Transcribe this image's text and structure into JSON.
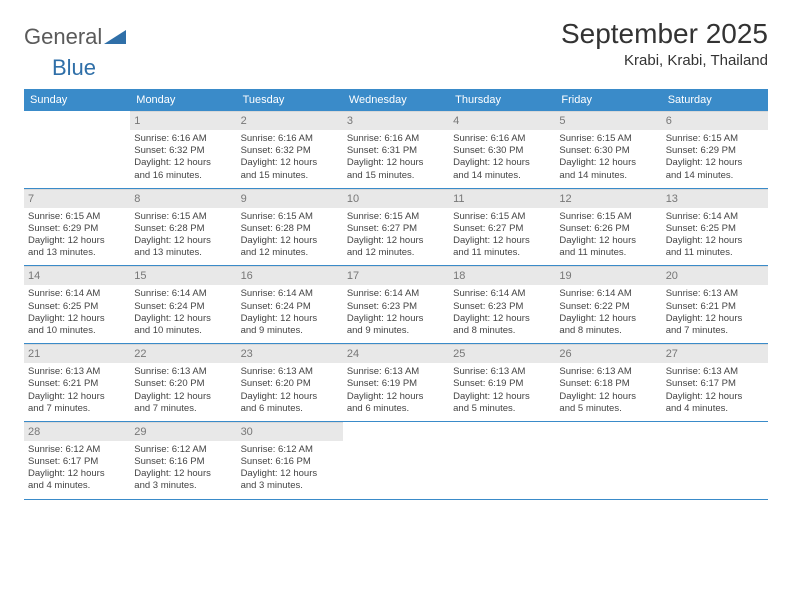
{
  "logo": {
    "text1": "General",
    "text2": "Blue"
  },
  "title": "September 2025",
  "location": "Krabi, Krabi, Thailand",
  "header_bg": "#3a8bc9",
  "dayname_bg": "#e8e8e8",
  "dow": [
    "Sunday",
    "Monday",
    "Tuesday",
    "Wednesday",
    "Thursday",
    "Friday",
    "Saturday"
  ],
  "weeks": [
    [
      {
        "n": "",
        "sr": "",
        "ss": "",
        "d1": "",
        "d2": ""
      },
      {
        "n": "1",
        "sr": "Sunrise: 6:16 AM",
        "ss": "Sunset: 6:32 PM",
        "d1": "Daylight: 12 hours",
        "d2": "and 16 minutes."
      },
      {
        "n": "2",
        "sr": "Sunrise: 6:16 AM",
        "ss": "Sunset: 6:32 PM",
        "d1": "Daylight: 12 hours",
        "d2": "and 15 minutes."
      },
      {
        "n": "3",
        "sr": "Sunrise: 6:16 AM",
        "ss": "Sunset: 6:31 PM",
        "d1": "Daylight: 12 hours",
        "d2": "and 15 minutes."
      },
      {
        "n": "4",
        "sr": "Sunrise: 6:16 AM",
        "ss": "Sunset: 6:30 PM",
        "d1": "Daylight: 12 hours",
        "d2": "and 14 minutes."
      },
      {
        "n": "5",
        "sr": "Sunrise: 6:15 AM",
        "ss": "Sunset: 6:30 PM",
        "d1": "Daylight: 12 hours",
        "d2": "and 14 minutes."
      },
      {
        "n": "6",
        "sr": "Sunrise: 6:15 AM",
        "ss": "Sunset: 6:29 PM",
        "d1": "Daylight: 12 hours",
        "d2": "and 14 minutes."
      }
    ],
    [
      {
        "n": "7",
        "sr": "Sunrise: 6:15 AM",
        "ss": "Sunset: 6:29 PM",
        "d1": "Daylight: 12 hours",
        "d2": "and 13 minutes."
      },
      {
        "n": "8",
        "sr": "Sunrise: 6:15 AM",
        "ss": "Sunset: 6:28 PM",
        "d1": "Daylight: 12 hours",
        "d2": "and 13 minutes."
      },
      {
        "n": "9",
        "sr": "Sunrise: 6:15 AM",
        "ss": "Sunset: 6:28 PM",
        "d1": "Daylight: 12 hours",
        "d2": "and 12 minutes."
      },
      {
        "n": "10",
        "sr": "Sunrise: 6:15 AM",
        "ss": "Sunset: 6:27 PM",
        "d1": "Daylight: 12 hours",
        "d2": "and 12 minutes."
      },
      {
        "n": "11",
        "sr": "Sunrise: 6:15 AM",
        "ss": "Sunset: 6:27 PM",
        "d1": "Daylight: 12 hours",
        "d2": "and 11 minutes."
      },
      {
        "n": "12",
        "sr": "Sunrise: 6:15 AM",
        "ss": "Sunset: 6:26 PM",
        "d1": "Daylight: 12 hours",
        "d2": "and 11 minutes."
      },
      {
        "n": "13",
        "sr": "Sunrise: 6:14 AM",
        "ss": "Sunset: 6:25 PM",
        "d1": "Daylight: 12 hours",
        "d2": "and 11 minutes."
      }
    ],
    [
      {
        "n": "14",
        "sr": "Sunrise: 6:14 AM",
        "ss": "Sunset: 6:25 PM",
        "d1": "Daylight: 12 hours",
        "d2": "and 10 minutes."
      },
      {
        "n": "15",
        "sr": "Sunrise: 6:14 AM",
        "ss": "Sunset: 6:24 PM",
        "d1": "Daylight: 12 hours",
        "d2": "and 10 minutes."
      },
      {
        "n": "16",
        "sr": "Sunrise: 6:14 AM",
        "ss": "Sunset: 6:24 PM",
        "d1": "Daylight: 12 hours",
        "d2": "and 9 minutes."
      },
      {
        "n": "17",
        "sr": "Sunrise: 6:14 AM",
        "ss": "Sunset: 6:23 PM",
        "d1": "Daylight: 12 hours",
        "d2": "and 9 minutes."
      },
      {
        "n": "18",
        "sr": "Sunrise: 6:14 AM",
        "ss": "Sunset: 6:23 PM",
        "d1": "Daylight: 12 hours",
        "d2": "and 8 minutes."
      },
      {
        "n": "19",
        "sr": "Sunrise: 6:14 AM",
        "ss": "Sunset: 6:22 PM",
        "d1": "Daylight: 12 hours",
        "d2": "and 8 minutes."
      },
      {
        "n": "20",
        "sr": "Sunrise: 6:13 AM",
        "ss": "Sunset: 6:21 PM",
        "d1": "Daylight: 12 hours",
        "d2": "and 7 minutes."
      }
    ],
    [
      {
        "n": "21",
        "sr": "Sunrise: 6:13 AM",
        "ss": "Sunset: 6:21 PM",
        "d1": "Daylight: 12 hours",
        "d2": "and 7 minutes."
      },
      {
        "n": "22",
        "sr": "Sunrise: 6:13 AM",
        "ss": "Sunset: 6:20 PM",
        "d1": "Daylight: 12 hours",
        "d2": "and 7 minutes."
      },
      {
        "n": "23",
        "sr": "Sunrise: 6:13 AM",
        "ss": "Sunset: 6:20 PM",
        "d1": "Daylight: 12 hours",
        "d2": "and 6 minutes."
      },
      {
        "n": "24",
        "sr": "Sunrise: 6:13 AM",
        "ss": "Sunset: 6:19 PM",
        "d1": "Daylight: 12 hours",
        "d2": "and 6 minutes."
      },
      {
        "n": "25",
        "sr": "Sunrise: 6:13 AM",
        "ss": "Sunset: 6:19 PM",
        "d1": "Daylight: 12 hours",
        "d2": "and 5 minutes."
      },
      {
        "n": "26",
        "sr": "Sunrise: 6:13 AM",
        "ss": "Sunset: 6:18 PM",
        "d1": "Daylight: 12 hours",
        "d2": "and 5 minutes."
      },
      {
        "n": "27",
        "sr": "Sunrise: 6:13 AM",
        "ss": "Sunset: 6:17 PM",
        "d1": "Daylight: 12 hours",
        "d2": "and 4 minutes."
      }
    ],
    [
      {
        "n": "28",
        "sr": "Sunrise: 6:12 AM",
        "ss": "Sunset: 6:17 PM",
        "d1": "Daylight: 12 hours",
        "d2": "and 4 minutes."
      },
      {
        "n": "29",
        "sr": "Sunrise: 6:12 AM",
        "ss": "Sunset: 6:16 PM",
        "d1": "Daylight: 12 hours",
        "d2": "and 3 minutes."
      },
      {
        "n": "30",
        "sr": "Sunrise: 6:12 AM",
        "ss": "Sunset: 6:16 PM",
        "d1": "Daylight: 12 hours",
        "d2": "and 3 minutes."
      },
      {
        "n": "",
        "sr": "",
        "ss": "",
        "d1": "",
        "d2": ""
      },
      {
        "n": "",
        "sr": "",
        "ss": "",
        "d1": "",
        "d2": ""
      },
      {
        "n": "",
        "sr": "",
        "ss": "",
        "d1": "",
        "d2": ""
      },
      {
        "n": "",
        "sr": "",
        "ss": "",
        "d1": "",
        "d2": ""
      }
    ]
  ]
}
